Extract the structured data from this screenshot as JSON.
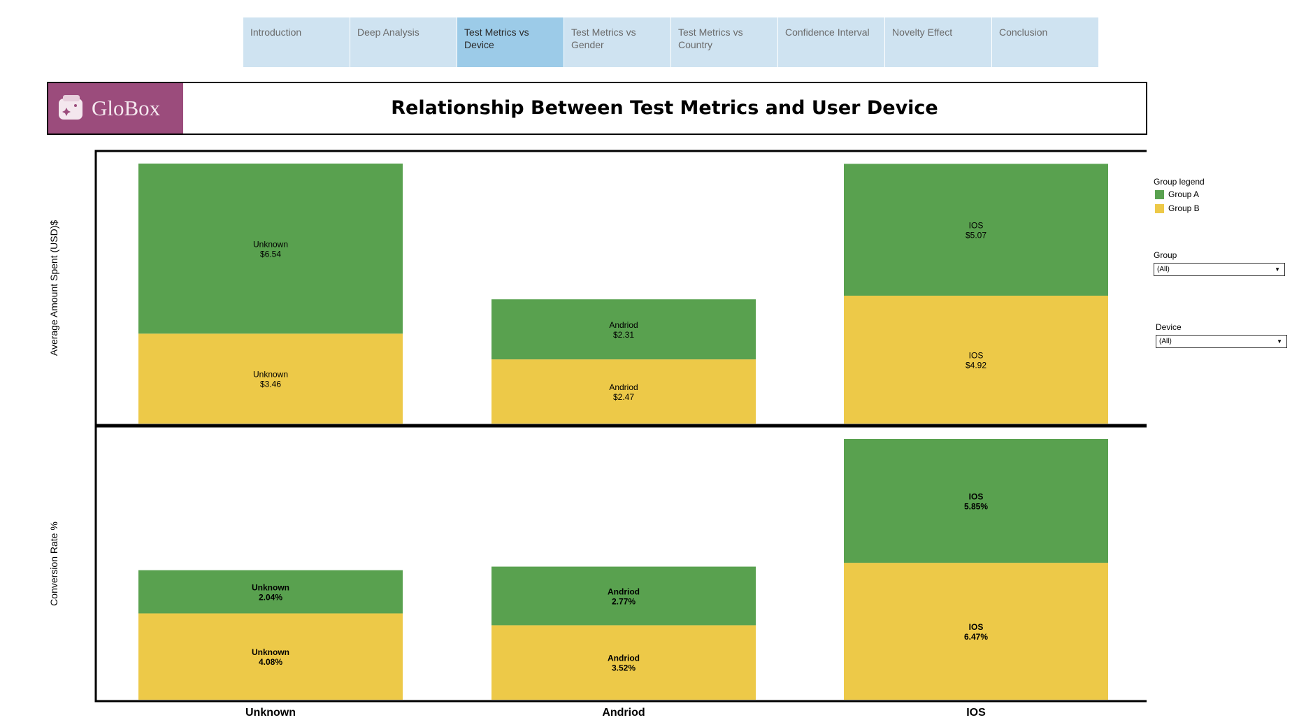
{
  "nav": {
    "tabs": [
      {
        "label": "Introduction",
        "active": false
      },
      {
        "label": "Deep Analysis",
        "active": false
      },
      {
        "label": "Test Metrics vs\nDevice",
        "active": true
      },
      {
        "label": "Test Metrics vs\nGender",
        "active": false
      },
      {
        "label": "Test Metrics vs\nCountry",
        "active": false
      },
      {
        "label": "Confidence Interval",
        "active": false
      },
      {
        "label": "Novelty Effect",
        "active": false
      },
      {
        "label": "Conclusion",
        "active": false
      }
    ]
  },
  "header": {
    "logo_text": "GloBox",
    "title": "Relationship Between Test Metrics and User Device"
  },
  "legend": {
    "title": "Group legend",
    "items": [
      {
        "label": "Group A",
        "color": "#59a14f"
      },
      {
        "label": "Group B",
        "color": "#edc948"
      }
    ]
  },
  "filters": {
    "group": {
      "label": "Group",
      "value": "(All)"
    },
    "device": {
      "label": "Device",
      "value": "(All)"
    }
  },
  "chart_data": [
    {
      "type": "bar",
      "stacked": true,
      "ylabel": "Average Amount Spent (USD)$",
      "categories": [
        "Unknown",
        "Andriod",
        "IOS"
      ],
      "series": [
        {
          "name": "Group B",
          "color": "#edc948",
          "values": [
            3.46,
            2.47,
            4.92
          ],
          "labels": [
            "$3.46",
            "$2.47",
            "$4.92"
          ]
        },
        {
          "name": "Group A",
          "color": "#59a14f",
          "values": [
            6.54,
            2.31,
            5.07
          ],
          "labels": [
            "$6.54",
            "$2.31",
            "$5.07"
          ]
        }
      ]
    },
    {
      "type": "bar",
      "stacked": true,
      "ylabel": "Conversion Rate %",
      "categories": [
        "Unknown",
        "Andriod",
        "IOS"
      ],
      "series": [
        {
          "name": "Group B",
          "color": "#edc948",
          "values": [
            4.08,
            3.52,
            6.47
          ],
          "labels": [
            "4.08%",
            "3.52%",
            "6.47%"
          ]
        },
        {
          "name": "Group A",
          "color": "#59a14f",
          "values": [
            2.04,
            2.77,
            5.85
          ],
          "labels": [
            "2.04%",
            "2.77%",
            "5.85%"
          ]
        }
      ]
    }
  ]
}
